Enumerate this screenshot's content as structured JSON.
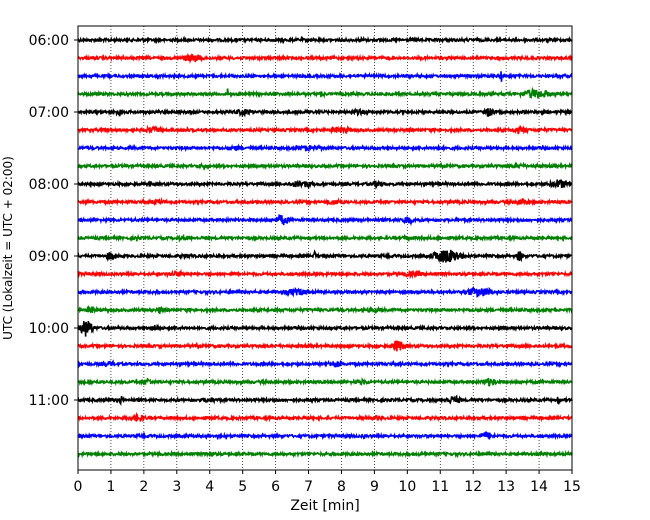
{
  "chart_data": {
    "type": "line",
    "title": "",
    "xlabel": "Zeit  [min]",
    "ylabel": "UTC (Lokalzeit = UTC + 02:00)",
    "xlim": [
      0,
      15
    ],
    "x_ticks": [
      0,
      1,
      2,
      3,
      4,
      5,
      6,
      7,
      8,
      9,
      10,
      11,
      12,
      13,
      14,
      15
    ],
    "y_ticks": [
      {
        "label": "06:00",
        "row": 0
      },
      {
        "label": "07:00",
        "row": 4
      },
      {
        "label": "08:00",
        "row": 8
      },
      {
        "label": "09:00",
        "row": 12
      },
      {
        "label": "10:00",
        "row": 16
      },
      {
        "label": "11:00",
        "row": 20
      }
    ],
    "grid": "vertical-dotted",
    "legend": "none",
    "trace_minutes": 15,
    "row_colors": [
      "#000000",
      "#ff0000",
      "#0000ff",
      "#008000"
    ],
    "rows": [
      {
        "start": "06:00",
        "events": [
          [
            2.0,
            0.25,
            0.2
          ],
          [
            8.6,
            0.3,
            0.2
          ]
        ]
      },
      {
        "start": "06:15",
        "events": [
          [
            3.5,
            0.55,
            0.4
          ]
        ]
      },
      {
        "start": "06:30",
        "events": [
          [
            12.85,
            1.0,
            0.03
          ]
        ]
      },
      {
        "start": "06:45",
        "events": [
          [
            4.55,
            0.9,
            0.03
          ],
          [
            7.4,
            0.5,
            0.1
          ],
          [
            13.9,
            0.7,
            0.5
          ]
        ]
      },
      {
        "start": "07:00",
        "events": [
          [
            1.25,
            0.7,
            0.1
          ],
          [
            5.0,
            0.45,
            0.4
          ],
          [
            8.5,
            0.4,
            0.3
          ],
          [
            12.5,
            0.8,
            0.15
          ]
        ]
      },
      {
        "start": "07:15",
        "events": [
          [
            2.3,
            0.5,
            0.3
          ],
          [
            8.0,
            0.5,
            0.4
          ],
          [
            13.4,
            0.5,
            0.3
          ]
        ]
      },
      {
        "start": "07:30",
        "events": [
          [
            4.8,
            0.35,
            0.3
          ],
          [
            7.0,
            0.4,
            0.5
          ],
          [
            11.0,
            0.3,
            0.3
          ]
        ]
      },
      {
        "start": "07:45",
        "events": [
          [
            3.8,
            0.3,
            0.3
          ],
          [
            13.4,
            0.35,
            0.3
          ]
        ]
      },
      {
        "start": "08:00",
        "events": [
          [
            2.2,
            0.4,
            0.05
          ],
          [
            6.8,
            0.55,
            0.4
          ],
          [
            9.1,
            0.5,
            0.2
          ],
          [
            14.6,
            0.7,
            0.3
          ]
        ]
      },
      {
        "start": "08:15",
        "events": [
          [
            2.4,
            0.4,
            0.3
          ],
          [
            7.8,
            0.4,
            0.4
          ],
          [
            13.5,
            0.6,
            0.2
          ]
        ]
      },
      {
        "start": "08:30",
        "events": [
          [
            6.2,
            0.8,
            0.2
          ],
          [
            10.0,
            0.6,
            0.2
          ]
        ]
      },
      {
        "start": "08:45",
        "events": [
          [
            1.8,
            0.6,
            0.05
          ],
          [
            3.2,
            0.35,
            0.3
          ],
          [
            10.0,
            0.3,
            0.3
          ]
        ]
      },
      {
        "start": "09:00",
        "events": [
          [
            1.0,
            0.6,
            0.2
          ],
          [
            3.3,
            0.3,
            0.3
          ],
          [
            7.2,
            0.8,
            0.05
          ],
          [
            11.2,
            1.0,
            0.5
          ],
          [
            13.4,
            0.8,
            0.1
          ]
        ]
      },
      {
        "start": "09:15",
        "events": [
          [
            3.0,
            0.4,
            0.4
          ],
          [
            10.2,
            0.4,
            0.4
          ]
        ]
      },
      {
        "start": "09:30",
        "events": [
          [
            6.6,
            0.5,
            0.5
          ],
          [
            12.2,
            0.7,
            0.5
          ]
        ]
      },
      {
        "start": "09:45",
        "events": [
          [
            0.4,
            0.5,
            0.2
          ],
          [
            2.5,
            0.6,
            0.1
          ],
          [
            9.0,
            0.35,
            0.4
          ]
        ]
      },
      {
        "start": "10:00",
        "events": [
          [
            0.25,
            1.3,
            0.2
          ],
          [
            2.3,
            0.45,
            0.2
          ]
        ]
      },
      {
        "start": "10:15",
        "events": [
          [
            9.7,
            0.85,
            0.2
          ]
        ]
      },
      {
        "start": "10:30",
        "events": [
          [
            1.0,
            0.4,
            0.3
          ],
          [
            7.8,
            0.5,
            0.3
          ]
        ]
      },
      {
        "start": "10:45",
        "events": [
          [
            2.1,
            0.5,
            0.2
          ],
          [
            8.6,
            0.4,
            0.3
          ],
          [
            12.5,
            0.6,
            0.25
          ]
        ]
      },
      {
        "start": "11:00",
        "events": [
          [
            1.3,
            0.8,
            0.05
          ],
          [
            4.0,
            0.4,
            0.3
          ],
          [
            11.4,
            0.6,
            0.3
          ],
          [
            14.6,
            0.8,
            0.05
          ]
        ]
      },
      {
        "start": "11:15",
        "events": [
          [
            1.8,
            0.55,
            0.3
          ],
          [
            9.1,
            0.35,
            0.3
          ]
        ]
      },
      {
        "start": "11:30",
        "events": [
          [
            8.7,
            0.4,
            0.05
          ],
          [
            12.4,
            0.6,
            0.25
          ]
        ]
      },
      {
        "start": "11:45",
        "events": [
          [
            4.0,
            0.3,
            0.3
          ],
          [
            10.5,
            0.3,
            0.3
          ]
        ]
      }
    ]
  }
}
